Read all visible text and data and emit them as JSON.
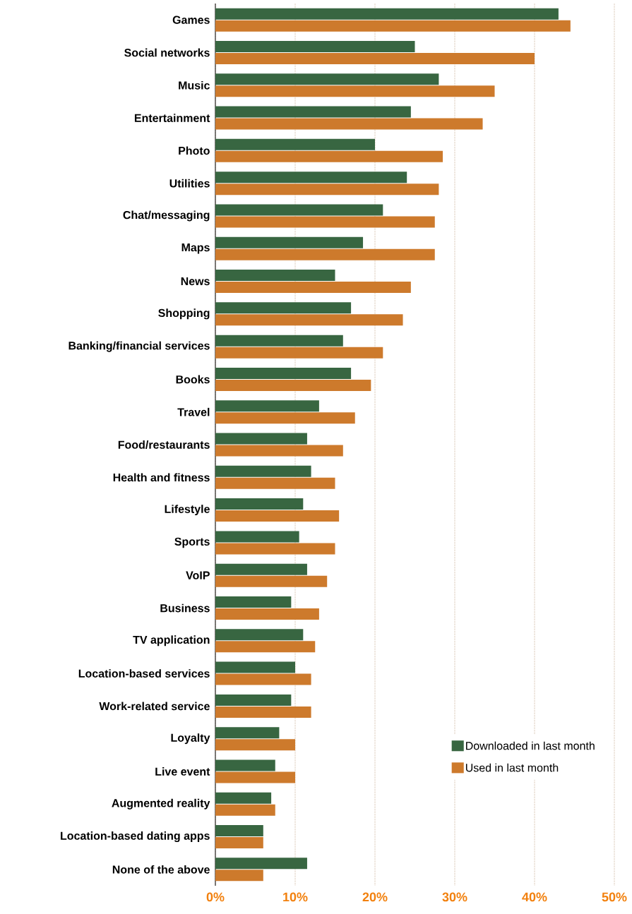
{
  "chart_data": {
    "type": "bar",
    "orientation": "horizontal",
    "categories": [
      "Games",
      "Social networks",
      "Music",
      "Entertainment",
      "Photo",
      "Utilities",
      "Chat/messaging",
      "Maps",
      "News",
      "Shopping",
      "Banking/financial services",
      "Books",
      "Travel",
      "Food/restaurants",
      "Health and fitness",
      "Lifestyle",
      "Sports",
      "VoIP",
      "Business",
      "TV application",
      "Location-based services",
      "Work-related service",
      "Loyalty",
      "Live event",
      "Augmented reality",
      "Location-based dating apps",
      "None of the above"
    ],
    "series": [
      {
        "name": "Downloaded in last month",
        "color": "#386641",
        "values": [
          43,
          25,
          28,
          24.5,
          20,
          24,
          21,
          18.5,
          15,
          17,
          16,
          17,
          13,
          11.5,
          12,
          11,
          10.5,
          11.5,
          9.5,
          11,
          10,
          9.5,
          8,
          7.5,
          7,
          6,
          11.5
        ]
      },
      {
        "name": "Used in last month",
        "color": "#cd7a2c",
        "values": [
          44.5,
          40,
          35,
          33.5,
          28.5,
          28,
          27.5,
          27.5,
          24.5,
          23.5,
          21,
          19.5,
          17.5,
          16,
          15,
          15.5,
          15,
          14,
          13,
          12.5,
          12,
          12,
          10,
          10,
          7.5,
          6,
          6
        ]
      }
    ],
    "xlim": [
      0,
      50
    ],
    "xticks": [
      {
        "value": 0,
        "label": "0%"
      },
      {
        "value": 10,
        "label": "10%"
      },
      {
        "value": 20,
        "label": "20%"
      },
      {
        "value": 30,
        "label": "30%"
      },
      {
        "value": 40,
        "label": "40%"
      },
      {
        "value": 50,
        "label": "50%"
      }
    ],
    "grid": "x",
    "legend": "bottom right"
  }
}
